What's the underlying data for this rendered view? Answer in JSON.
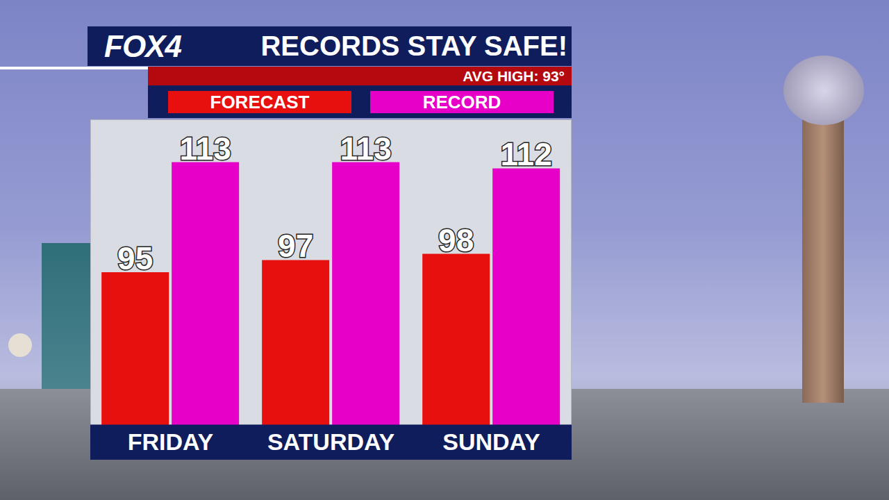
{
  "chart_data": {
    "type": "bar",
    "logo": "FOX4",
    "title": "RECORDS STAY SAFE!",
    "subtitle": "AVG HIGH: 93°",
    "categories": [
      "FRIDAY",
      "SATURDAY",
      "SUNDAY"
    ],
    "series": [
      {
        "name": "FORECAST",
        "color": "#e8100f",
        "values": [
          95,
          97,
          98
        ]
      },
      {
        "name": "RECORD",
        "color": "#e600c8",
        "values": [
          113,
          113,
          112
        ]
      }
    ],
    "ylim": [
      70,
      120
    ],
    "data_labels": true,
    "tick_labels": "x",
    "legend": "top",
    "grid": false
  }
}
